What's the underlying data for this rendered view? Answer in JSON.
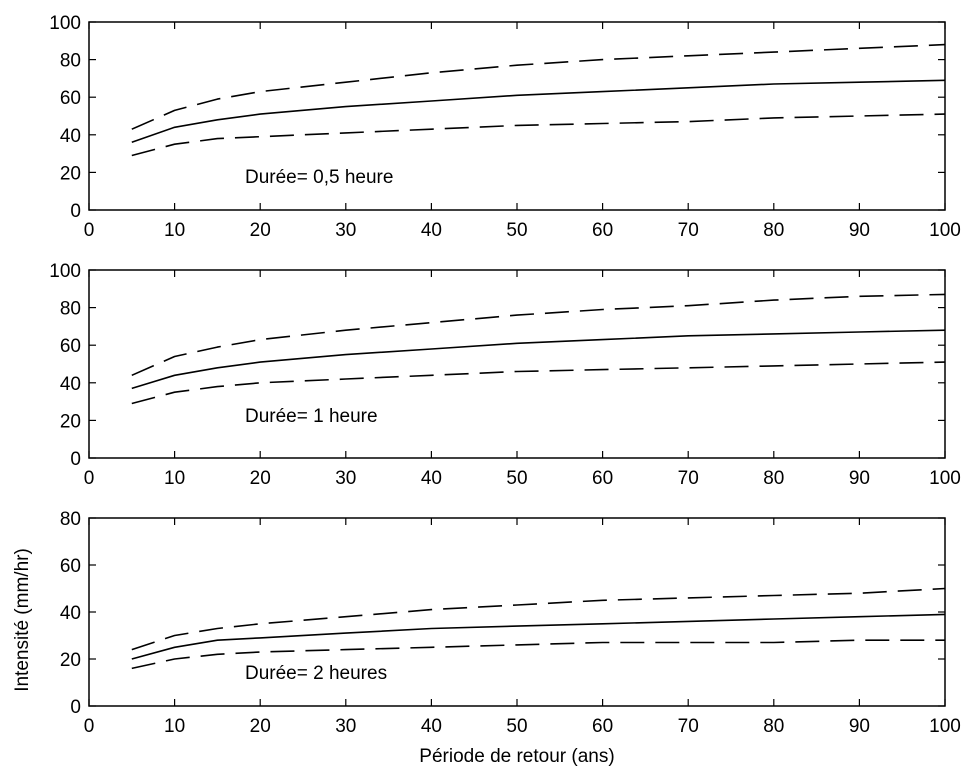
{
  "chart_data": [
    {
      "type": "line",
      "annotation": "Durée= 0,5 heure",
      "xlabel": "",
      "ylabel": "",
      "xlim": [
        0,
        100
      ],
      "ylim": [
        0,
        100
      ],
      "xticks": [
        0,
        10,
        20,
        30,
        40,
        50,
        60,
        70,
        80,
        90,
        100
      ],
      "yticks": [
        0,
        20,
        40,
        60,
        80,
        100
      ],
      "grid": false,
      "x": [
        5,
        10,
        15,
        20,
        30,
        40,
        50,
        60,
        70,
        80,
        90,
        100
      ],
      "series": [
        {
          "style": "dashed",
          "values": [
            43,
            53,
            59,
            63,
            68,
            73,
            77,
            80,
            82,
            84,
            86,
            88
          ]
        },
        {
          "style": "solid",
          "values": [
            36,
            44,
            48,
            51,
            55,
            58,
            61,
            63,
            65,
            67,
            68,
            69
          ]
        },
        {
          "style": "dashed",
          "values": [
            29,
            35,
            38,
            39,
            41,
            43,
            45,
            46,
            47,
            49,
            50,
            51
          ]
        }
      ]
    },
    {
      "type": "line",
      "annotation": "Durée= 1 heure",
      "xlabel": "",
      "ylabel": "",
      "xlim": [
        0,
        100
      ],
      "ylim": [
        0,
        100
      ],
      "xticks": [
        0,
        10,
        20,
        30,
        40,
        50,
        60,
        70,
        80,
        90,
        100
      ],
      "yticks": [
        0,
        20,
        40,
        60,
        80,
        100
      ],
      "grid": false,
      "x": [
        5,
        10,
        15,
        20,
        30,
        40,
        50,
        60,
        70,
        80,
        90,
        100
      ],
      "series": [
        {
          "style": "dashed",
          "values": [
            44,
            54,
            59,
            63,
            68,
            72,
            76,
            79,
            81,
            84,
            86,
            87
          ]
        },
        {
          "style": "solid",
          "values": [
            37,
            44,
            48,
            51,
            55,
            58,
            61,
            63,
            65,
            66,
            67,
            68
          ]
        },
        {
          "style": "dashed",
          "values": [
            29,
            35,
            38,
            40,
            42,
            44,
            46,
            47,
            48,
            49,
            50,
            51
          ]
        }
      ]
    },
    {
      "type": "line",
      "annotation": "Durée= 2 heures",
      "xlabel": "Période de retour (ans)",
      "ylabel": "Intensité (mm/hr)",
      "xlim": [
        0,
        100
      ],
      "ylim": [
        0,
        80
      ],
      "xticks": [
        0,
        10,
        20,
        30,
        40,
        50,
        60,
        70,
        80,
        90,
        100
      ],
      "yticks": [
        0,
        20,
        40,
        60,
        80
      ],
      "grid": false,
      "x": [
        5,
        10,
        15,
        20,
        30,
        40,
        50,
        60,
        70,
        80,
        90,
        100
      ],
      "series": [
        {
          "style": "dashed",
          "values": [
            24,
            30,
            33,
            35,
            38,
            41,
            43,
            45,
            46,
            47,
            48,
            50
          ]
        },
        {
          "style": "solid",
          "values": [
            20,
            25,
            28,
            29,
            31,
            33,
            34,
            35,
            36,
            37,
            38,
            39
          ]
        },
        {
          "style": "dashed",
          "values": [
            16,
            20,
            22,
            23,
            24,
            25,
            26,
            27,
            27,
            27,
            28,
            28
          ]
        }
      ]
    }
  ]
}
